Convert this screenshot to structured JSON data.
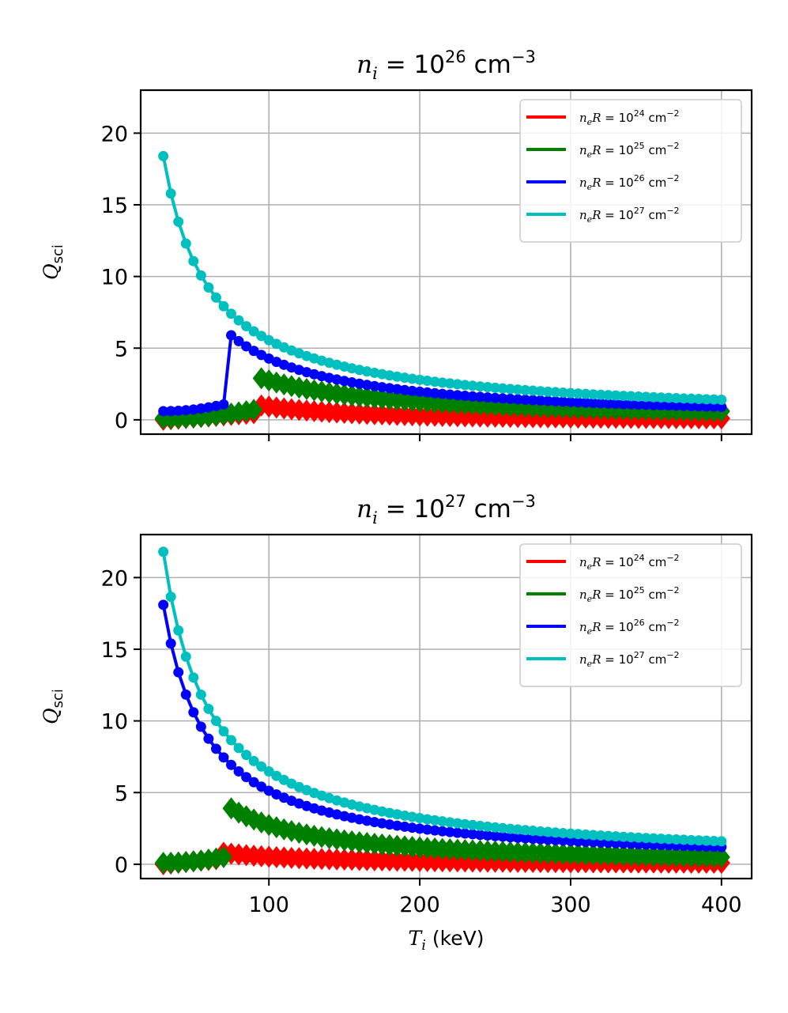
{
  "chart_data": [
    {
      "type": "line",
      "panel": "top",
      "title": {
        "var": "n",
        "sub": "i",
        "eq": " = 10",
        "exp": "26",
        "unit": " cm",
        "unit_exp": "−3"
      },
      "ylabel": {
        "var": "Q",
        "sub": "sci"
      },
      "xlabel": "",
      "xlim": [
        15,
        420
      ],
      "ylim": [
        -1,
        23
      ],
      "xticks": [
        100,
        200,
        300,
        400
      ],
      "yticks": [
        0,
        5,
        10,
        15,
        20
      ],
      "show_xtick_labels": false,
      "grid": true,
      "legend_position": "top-right",
      "series": [
        {
          "name": "n_eR = 10^24 cm^-2",
          "var": "n",
          "sub": "e",
          "rest": "R = 10",
          "exp": "24",
          "unit": " cm",
          "unit_exp": "−2",
          "color": "#ff0000",
          "marker": "diamond",
          "line": false,
          "x_range": [
            30,
            400
          ],
          "peak_start": 95,
          "peak": 1.0,
          "low": 0.0,
          "end": 0.1
        },
        {
          "name": "n_eR = 10^25 cm^-2",
          "var": "n",
          "sub": "e",
          "rest": "R = 10",
          "exp": "25",
          "unit": " cm",
          "unit_exp": "−2",
          "color": "#008000",
          "marker": "diamond",
          "line": false,
          "x_range": [
            30,
            400
          ],
          "jump_x": 95,
          "pre_jump": [
            0.1,
            0.8
          ],
          "peak": 2.9,
          "end": 0.6
        },
        {
          "name": "n_eR = 10^26 cm^-2",
          "var": "n",
          "sub": "e",
          "rest": "R = 10",
          "exp": "26",
          "unit": " cm",
          "unit_exp": "−2",
          "color": "#0000ff",
          "marker": "dot",
          "line": true,
          "x_range": [
            30,
            400
          ],
          "jump_x": 75,
          "pre_jump": [
            0.6,
            1.2
          ],
          "peak": 5.9,
          "end": 0.9
        },
        {
          "name": "n_eR = 10^27 cm^-2",
          "var": "n",
          "sub": "e",
          "rest": "R = 10",
          "exp": "27",
          "unit": " cm",
          "unit_exp": "−2",
          "color": "#00bfbf",
          "marker": "dot",
          "line": true,
          "x_range": [
            30,
            400
          ],
          "start": 18.4,
          "end": 1.4
        }
      ]
    },
    {
      "type": "line",
      "panel": "bottom",
      "title": {
        "var": "n",
        "sub": "i",
        "eq": " = 10",
        "exp": "27",
        "unit": " cm",
        "unit_exp": "−3"
      },
      "ylabel": {
        "var": "Q",
        "sub": "sci"
      },
      "xlabel": {
        "var": "T",
        "sub": "i",
        "unit": " (keV)"
      },
      "xlim": [
        15,
        420
      ],
      "ylim": [
        -1,
        23
      ],
      "xticks": [
        100,
        200,
        300,
        400
      ],
      "yticks": [
        0,
        5,
        10,
        15,
        20
      ],
      "show_xtick_labels": true,
      "grid": true,
      "legend_position": "top-right",
      "series": [
        {
          "name": "n_eR = 10^24 cm^-2",
          "var": "n",
          "sub": "e",
          "rest": "R = 10",
          "exp": "24",
          "unit": " cm",
          "unit_exp": "−2",
          "color": "#ff0000",
          "marker": "diamond",
          "line": false,
          "x_range": [
            30,
            400
          ],
          "peak_start": 70,
          "peak": 0.8,
          "low": 0.0,
          "end": 0.1
        },
        {
          "name": "n_eR = 10^25 cm^-2",
          "var": "n",
          "sub": "e",
          "rest": "R = 10",
          "exp": "25",
          "unit": " cm",
          "unit_exp": "−2",
          "color": "#008000",
          "marker": "diamond",
          "line": false,
          "x_range": [
            30,
            400
          ],
          "jump_x": 75,
          "pre_jump": [
            0.1,
            0.6
          ],
          "peak": 3.9,
          "end": 0.5
        },
        {
          "name": "n_eR = 10^26 cm^-2",
          "var": "n",
          "sub": "e",
          "rest": "R = 10",
          "exp": "26",
          "unit": " cm",
          "unit_exp": "−2",
          "color": "#0000ff",
          "marker": "dot",
          "line": true,
          "x_range": [
            30,
            400
          ],
          "start": 18.1,
          "end": 1.2
        },
        {
          "name": "n_eR = 10^27 cm^-2",
          "var": "n",
          "sub": "e",
          "rest": "R = 10",
          "exp": "27",
          "unit": " cm",
          "unit_exp": "−2",
          "color": "#00bfbf",
          "marker": "dot",
          "line": true,
          "x_range": [
            30,
            400
          ],
          "start": 21.8,
          "end": 1.6
        }
      ]
    }
  ]
}
